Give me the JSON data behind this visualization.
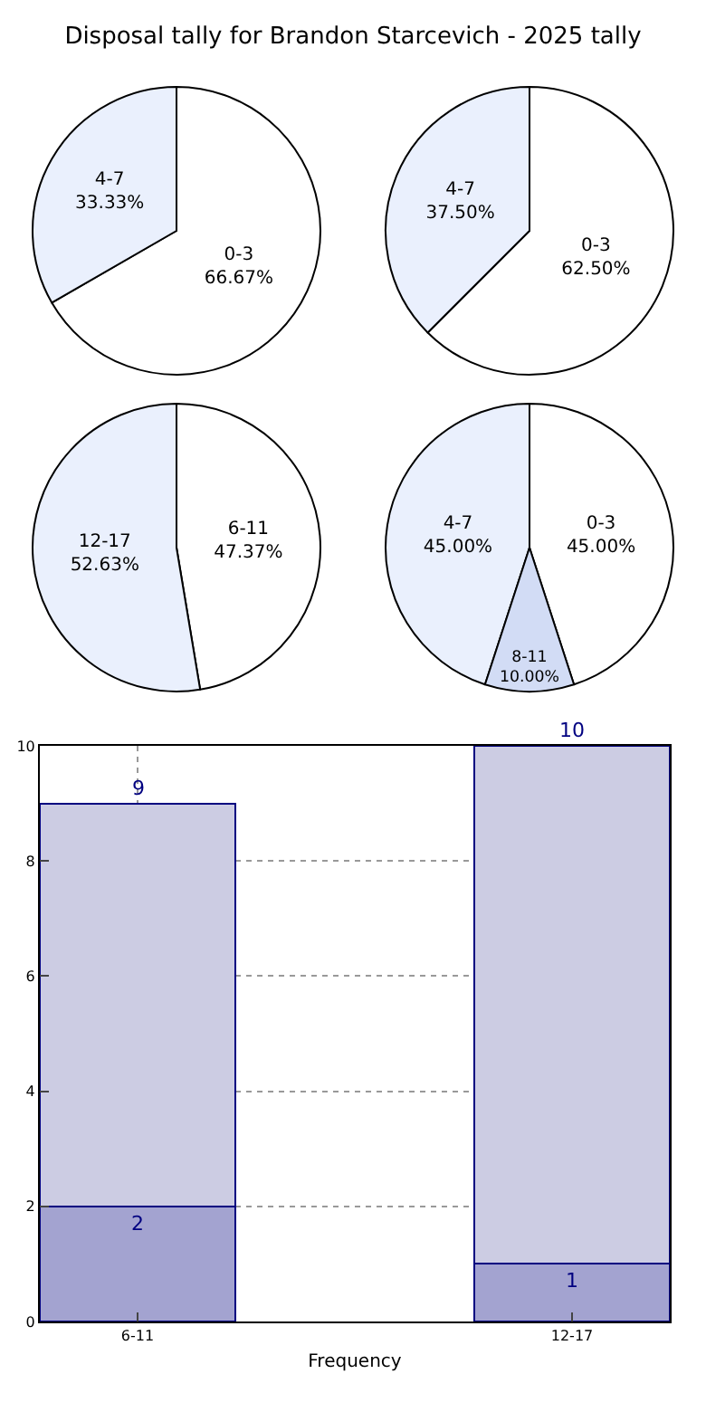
{
  "chart_data": [
    {
      "type": "pie",
      "title": "Disposal tally for Brandon Starcevich - 2025 tally",
      "categories": [
        "0-3",
        "4-7"
      ],
      "values": [
        66.67,
        33.33
      ],
      "value_labels": [
        "66.67%",
        "33.33%"
      ],
      "colors": [
        "#ffffff",
        "#eaf0fd"
      ]
    },
    {
      "type": "pie",
      "categories": [
        "0-3",
        "4-7"
      ],
      "values": [
        62.5,
        37.5
      ],
      "value_labels": [
        "62.50%",
        "37.50%"
      ],
      "colors": [
        "#ffffff",
        "#eaf0fd"
      ]
    },
    {
      "type": "pie",
      "categories": [
        "6-11",
        "12-17"
      ],
      "values": [
        47.37,
        52.63
      ],
      "value_labels": [
        "47.37%",
        "52.63%"
      ],
      "colors": [
        "#ffffff",
        "#eaf0fd"
      ]
    },
    {
      "type": "pie",
      "categories": [
        "0-3",
        "4-7",
        "8-11"
      ],
      "values": [
        45,
        45,
        10
      ],
      "value_labels": [
        "45.00%",
        "45.00%",
        "10.00%"
      ],
      "colors": [
        "#ffffff",
        "#eaf0fd",
        "#d2dcf5"
      ]
    },
    {
      "type": "bar",
      "categories": [
        "6-11",
        "12-17"
      ],
      "xlabel": "Frequency",
      "stacked": true,
      "series": [
        {
          "color": "#a3a3d0",
          "values": [
            2,
            1
          ],
          "value_labels": [
            "2",
            "1"
          ]
        },
        {
          "color": "#ccccE3",
          "values": [
            7,
            9
          ]
        }
      ],
      "totals": [
        "9",
        "10"
      ],
      "ylim": [
        0,
        10
      ],
      "yticks": [
        0,
        2,
        4,
        6,
        8,
        10
      ],
      "grid": true
    }
  ]
}
